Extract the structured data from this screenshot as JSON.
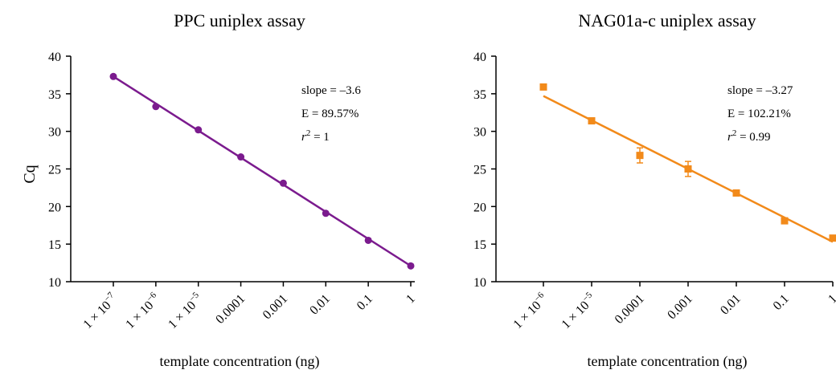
{
  "chart_data": [
    {
      "type": "scatter",
      "title": "PPC uniplex assay",
      "xlabel": "template concentration (ng)",
      "ylabel": "Cq",
      "x_scale": "log",
      "x_ticks": [
        {
          "value": 1e-07,
          "mant": "1 × 10",
          "exp": "−7"
        },
        {
          "value": 1e-06,
          "mant": "1 × 10",
          "exp": "−6"
        },
        {
          "value": 1e-05,
          "mant": "1 × 10",
          "exp": "−5"
        },
        {
          "value": 0.0001,
          "label": "0.0001"
        },
        {
          "value": 0.001,
          "label": "0.001"
        },
        {
          "value": 0.01,
          "label": "0.01"
        },
        {
          "value": 0.1,
          "label": "0.1"
        },
        {
          "value": 1,
          "label": "1"
        }
      ],
      "ylim": [
        10,
        40
      ],
      "y_ticks": [
        10,
        15,
        20,
        25,
        30,
        35,
        40
      ],
      "color": "#7b1b8e",
      "marker": "circle",
      "points": [
        {
          "x": 1e-07,
          "y": 37.3
        },
        {
          "x": 1e-06,
          "y": 33.3
        },
        {
          "x": 1e-05,
          "y": 30.2
        },
        {
          "x": 0.0001,
          "y": 26.6
        },
        {
          "x": 0.001,
          "y": 23.1
        },
        {
          "x": 0.01,
          "y": 19.1
        },
        {
          "x": 0.1,
          "y": 15.5
        },
        {
          "x": 1,
          "y": 12.1
        }
      ],
      "fit": {
        "x": [
          1e-07,
          1
        ],
        "y": [
          37.3,
          12.1
        ]
      },
      "annotations": {
        "slope": "slope = –3.6",
        "efficiency": "E = 89.57%",
        "r2_var": "r",
        "r2_sup": "2",
        "r2_val": " = 1"
      }
    },
    {
      "type": "scatter",
      "title": "NAG01a-c uniplex assay",
      "xlabel": "template concentration (ng)",
      "ylabel": "",
      "x_scale": "log",
      "x_ticks": [
        {
          "value": 1e-06,
          "mant": "1 × 10",
          "exp": "−6"
        },
        {
          "value": 1e-05,
          "mant": "1 × 10",
          "exp": "−5"
        },
        {
          "value": 0.0001,
          "label": "0.0001"
        },
        {
          "value": 0.001,
          "label": "0.001"
        },
        {
          "value": 0.01,
          "label": "0.01"
        },
        {
          "value": 0.1,
          "label": "0.1"
        },
        {
          "value": 1,
          "label": "1"
        }
      ],
      "ylim": [
        10,
        40
      ],
      "y_ticks": [
        10,
        15,
        20,
        25,
        30,
        35,
        40
      ],
      "color": "#f28a1a",
      "marker": "square",
      "points": [
        {
          "x": 1e-06,
          "y": 35.9,
          "err": 0
        },
        {
          "x": 1e-05,
          "y": 31.4,
          "err": 0.2
        },
        {
          "x": 0.0001,
          "y": 26.8,
          "err": 1.0
        },
        {
          "x": 0.001,
          "y": 25.0,
          "err": 1.0
        },
        {
          "x": 0.01,
          "y": 21.8,
          "err": 0
        },
        {
          "x": 0.1,
          "y": 18.1,
          "err": 0.3
        },
        {
          "x": 1,
          "y": 15.8,
          "err": 0
        }
      ],
      "fit": {
        "x": [
          1e-06,
          1
        ],
        "y": [
          34.7,
          15.3
        ]
      },
      "annotations": {
        "slope": "slope = –3.27",
        "efficiency": "E = 102.21%",
        "r2_var": "r",
        "r2_sup": "2",
        "r2_val": " = 0.99"
      }
    }
  ]
}
